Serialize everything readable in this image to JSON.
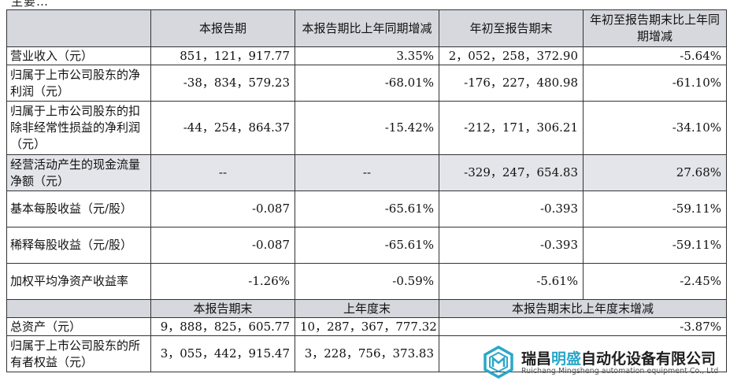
{
  "top_text": "主要…",
  "header": {
    "col1": "",
    "col2": "本报告期",
    "col3": "本报告期比上年同期增减",
    "col4": "年初至报告期末",
    "col5": "年初至报告期末比上年同期增减"
  },
  "rows": [
    {
      "label": "营业收入（元）",
      "v1": "851，121，917.77",
      "v2": "3.35%",
      "v3": "2，052，258，372.90",
      "v4": "-5.64%"
    },
    {
      "label": "归属于上市公司股东的净利润（元）",
      "v1": "-38，834，579.23",
      "v2": "-68.01%",
      "v3": "-176，227，480.98",
      "v4": "-61.10%"
    },
    {
      "label": "归属于上市公司股东的扣除非经常性损益的净利润（元）",
      "v1": "-44，254，864.37",
      "v2": "-15.42%",
      "v3": "-212，171，306.21",
      "v4": "-34.10%"
    },
    {
      "label": "经营活动产生的现金流量净额（元）",
      "v1": "--",
      "v2": "--",
      "v3": "-329，247，654.83",
      "v4": "27.68%"
    },
    {
      "label": "基本每股收益（元/股）",
      "v1": "-0.087",
      "v2": "-65.61%",
      "v3": "-0.393",
      "v4": "-59.11%"
    },
    {
      "label": "稀释每股收益（元/股）",
      "v1": "-0.087",
      "v2": "-65.61%",
      "v3": "-0.393",
      "v4": "-59.11%"
    },
    {
      "label": "加权平均净资产收益率",
      "v1": "-1.26%",
      "v2": "-0.59%",
      "v3": "-5.61%",
      "v4": "-2.45%"
    }
  ],
  "subheader": {
    "col2": "本报告期末",
    "col3": "上年度末",
    "col45": "本报告期末比上年度末增减"
  },
  "bottom_rows": [
    {
      "label": "总资产（元）",
      "v1": "9，888，825，605.77",
      "v2": "10，287，367，777.32",
      "v34": "-3.87%"
    },
    {
      "label": "归属于上市公司股东的所有者权益（元）",
      "v1": "3，055，442，915.47",
      "v2": "3，228，756，373.83",
      "v34": ""
    }
  ],
  "watermark": {
    "cn_pre": "瑞昌",
    "cn_hl": "明盛",
    "cn_post": "自动化设备有限公司",
    "en": "Ruichang Mingsheng automation equipment Co., Ltd",
    "color": "#2aa7c7"
  }
}
